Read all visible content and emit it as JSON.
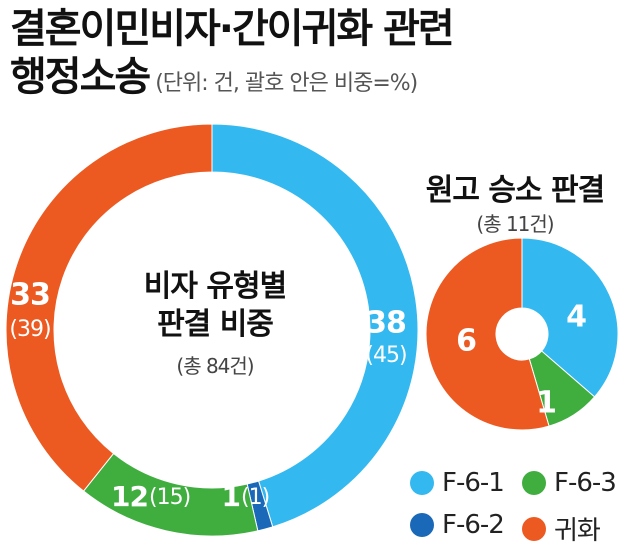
{
  "title_line1": "결혼이민비자·간이귀화 관련",
  "title_line2": "행정소송",
  "unit_note": "(단위: 건, 괄호 안은 비중=%)",
  "colors": {
    "F-6-1": "#33b8f0",
    "F-6-3": "#3fae3f",
    "F-6-2": "#1a68b8",
    "귀화": "#ec5a22"
  },
  "legend": [
    {
      "key": "F-6-1",
      "label": "F-6-1"
    },
    {
      "key": "F-6-3",
      "label": "F-6-3"
    },
    {
      "key": "F-6-2",
      "label": "F-6-2"
    },
    {
      "key": "귀화",
      "label": "귀화"
    }
  ],
  "chart_data": [
    {
      "type": "pie",
      "title": "비자 유형별 판결 비중",
      "title_line1": "비자 유형별",
      "title_line2": "판결 비중",
      "subtitle": "(총 84건)",
      "slices": [
        {
          "key": "F-6-1",
          "value": 38,
          "percent": 45,
          "value_label": "38",
          "percent_label": "(45)"
        },
        {
          "key": "F-6-2",
          "value": 1,
          "percent": 1,
          "value_label": "1",
          "percent_label": "(1)"
        },
        {
          "key": "F-6-3",
          "value": 12,
          "percent": 15,
          "value_label": "12",
          "percent_label": "(15)"
        },
        {
          "key": "귀화",
          "value": 33,
          "percent": 39,
          "value_label": "33",
          "percent_label": "(39)"
        }
      ]
    },
    {
      "type": "pie",
      "title": "원고 승소 판결",
      "subtitle": "(총 11건)",
      "slices": [
        {
          "key": "F-6-1",
          "value": 4,
          "value_label": "4"
        },
        {
          "key": "F-6-3",
          "value": 1,
          "value_label": "1"
        },
        {
          "key": "귀화",
          "value": 6,
          "value_label": "6"
        }
      ]
    }
  ]
}
